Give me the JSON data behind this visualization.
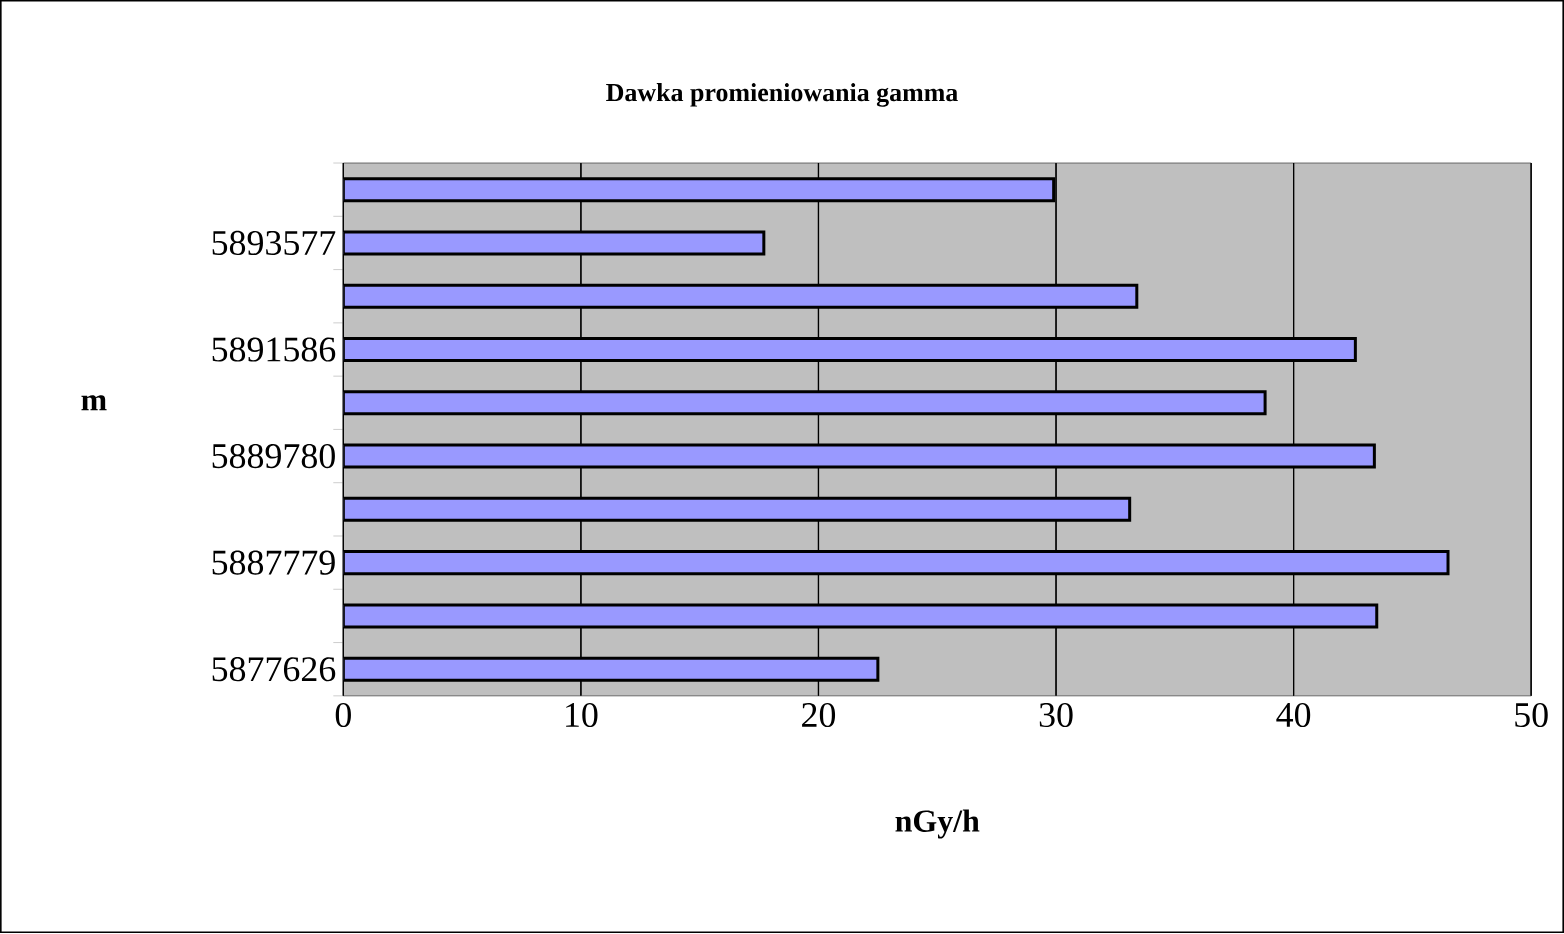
{
  "chart_data": {
    "type": "bar",
    "orientation": "horizontal",
    "title": "Dawka promieniowania gamma",
    "xlabel": "nGy/h",
    "ylabel": "m",
    "categories": [
      null,
      "5893577",
      null,
      "5891586",
      null,
      "5889780",
      null,
      "5887779",
      null,
      "5877626"
    ],
    "values": [
      29.9,
      17.7,
      33.4,
      42.6,
      38.8,
      43.4,
      33.1,
      46.5,
      43.5,
      22.5
    ],
    "color": "#9999ff",
    "xlim": [
      0,
      50
    ],
    "xticks": [
      0,
      10,
      20,
      30,
      40,
      50
    ],
    "grid": "x"
  }
}
